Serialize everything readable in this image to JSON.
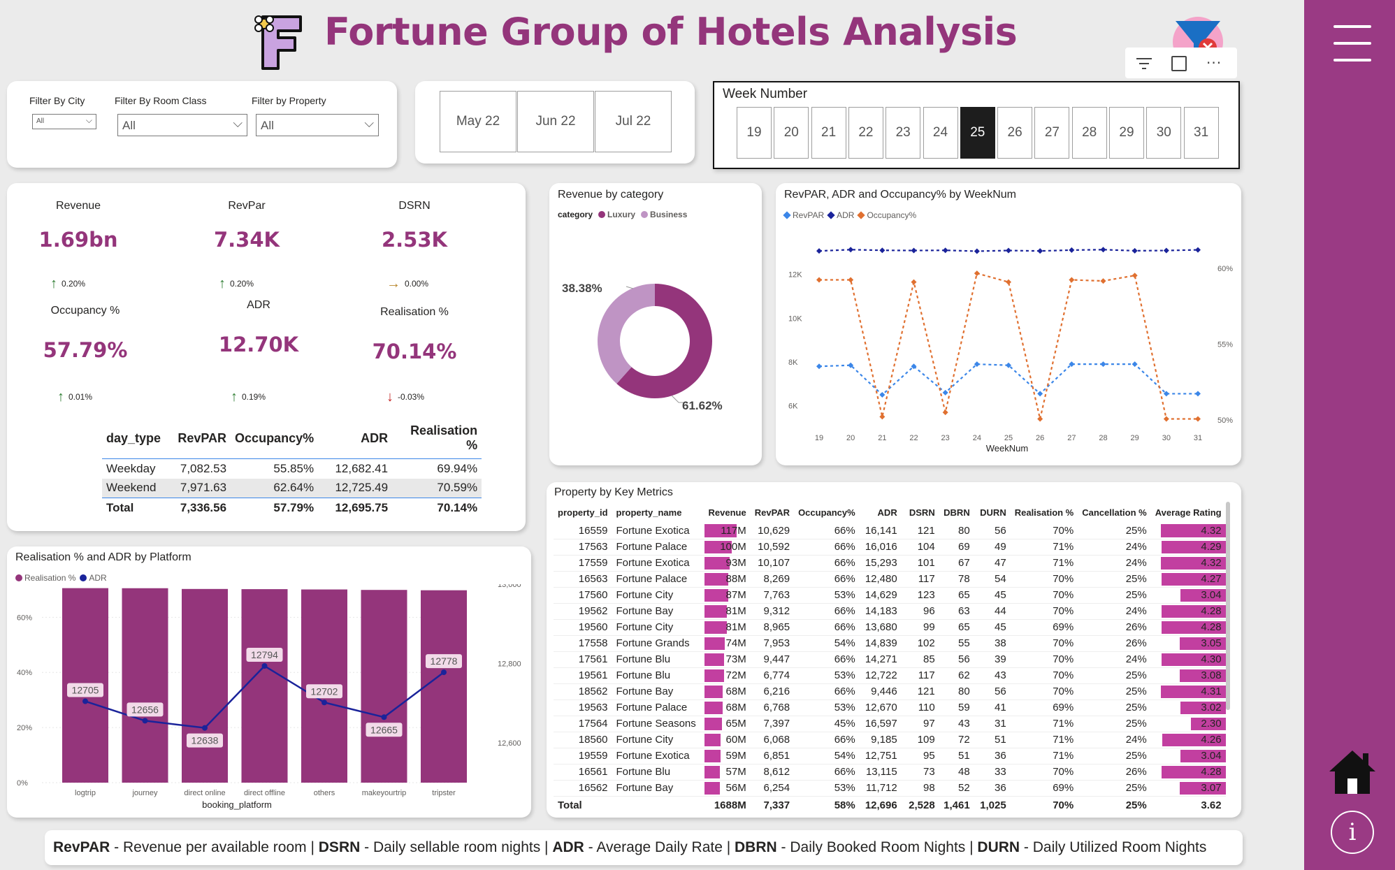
{
  "header": {
    "title": "Fortune Group of Hotels Analysis",
    "logo_letter": "F"
  },
  "filters": {
    "city_label": "Filter By City",
    "city_value": "All",
    "room_class_label": "Filter By Room Class",
    "room_class_value": "All",
    "property_label": "Filter by Property",
    "property_value": "All"
  },
  "months": [
    "May 22",
    "Jun 22",
    "Jul 22"
  ],
  "week_slicer": {
    "title": "Week Number",
    "weeks": [
      "19",
      "20",
      "21",
      "22",
      "23",
      "24",
      "25",
      "26",
      "27",
      "28",
      "29",
      "30",
      "31"
    ],
    "selected": "25"
  },
  "kpis": [
    {
      "label": "Revenue",
      "value": "1.69bn",
      "delta": "0.20%",
      "dir": "up"
    },
    {
      "label": "RevPar",
      "value": "7.34K",
      "delta": "0.20%",
      "dir": "up"
    },
    {
      "label": "DSRN",
      "value": "2.53K",
      "delta": "0.00%",
      "dir": "flat"
    },
    {
      "label": "Occupancy %",
      "value": "57.79%",
      "delta": "0.01%",
      "dir": "up"
    },
    {
      "label": "ADR",
      "value": "12.70K",
      "delta": "0.19%",
      "dir": "up"
    },
    {
      "label": "Realisation %",
      "value": "70.14%",
      "delta": "-0.03%",
      "dir": "down"
    }
  ],
  "day_type_table": {
    "headers": [
      "day_type",
      "RevPAR",
      "Occupancy%",
      "ADR",
      "Realisation %"
    ],
    "rows": [
      [
        "Weekday",
        "7,082.53",
        "55.85%",
        "12,682.41",
        "69.94%"
      ],
      [
        "Weekend",
        "7,971.63",
        "62.64%",
        "12,725.49",
        "70.59%"
      ]
    ],
    "total": [
      "Total",
      "7,336.56",
      "57.79%",
      "12,695.75",
      "70.14%"
    ]
  },
  "revenue_category": {
    "title": "Revenue by category",
    "legend_title": "category",
    "colors": {
      "Luxury": "#94357b",
      "Business": "#bf94c4"
    },
    "chart_data": {
      "type": "pie",
      "categories": [
        "Luxury",
        "Business"
      ],
      "values": [
        61.62,
        38.38
      ],
      "labels": [
        "61.62%",
        "38.38%"
      ]
    }
  },
  "weeknum_chart": {
    "title": "RevPAR, ADR and Occupancy% by WeekNum",
    "xlabel": "WeekNum",
    "left_ticks": [
      "6K",
      "8K",
      "10K",
      "12K"
    ],
    "right_ticks": [
      "50%",
      "55%",
      "60%"
    ],
    "colors": {
      "RevPAR": "#3b86e8",
      "ADR": "#1a239a",
      "Occupancy%": "#e07030"
    },
    "chart_data": {
      "type": "line",
      "x": [
        19,
        20,
        21,
        22,
        23,
        24,
        25,
        26,
        27,
        28,
        29,
        30,
        31
      ],
      "ylim": [
        5000,
        14000
      ],
      "y2lim": [
        49.5,
        62.5
      ],
      "series": [
        {
          "name": "RevPAR",
          "axis": "left",
          "values": [
            7800,
            7850,
            6500,
            7800,
            6600,
            7900,
            7850,
            6550,
            7900,
            7900,
            7900,
            6550,
            6550
          ]
        },
        {
          "name": "ADR",
          "axis": "left",
          "values": [
            13070,
            13130,
            13100,
            13090,
            13100,
            13060,
            13090,
            13070,
            13110,
            13130,
            13080,
            13090,
            13120
          ]
        },
        {
          "name": "Occupancy%",
          "axis": "left",
          "values": [
            11750,
            11750,
            5500,
            11650,
            5700,
            12050,
            11650,
            5400,
            11750,
            11700,
            11950,
            5400,
            5400
          ]
        }
      ]
    }
  },
  "platform_chart": {
    "title": "Realisation % and ADR by Platform",
    "xlabel": "booking_platform",
    "left_ticks": [
      "0%",
      "20%",
      "40%",
      "60%"
    ],
    "right_ticks": [
      "12,600",
      "12,800",
      "13,000"
    ],
    "colors": {
      "Realisation %": "#94357b",
      "ADR": "#1a239a"
    },
    "chart_data": {
      "type": "bar",
      "categories": [
        "logtrip",
        "journey",
        "direct online",
        "direct offline",
        "others",
        "makeyourtrip",
        "tripster"
      ],
      "series": [
        {
          "name": "Realisation %",
          "axis": "left",
          "values": [
            70.57,
            70.54,
            70.27,
            70.2,
            70.09,
            69.92,
            69.8
          ],
          "labels": [
            "70.57%",
            "70.54%",
            "70.27%",
            "70.20%",
            "70.09%",
            "69.92%",
            "69.80%"
          ]
        },
        {
          "name": "ADR",
          "axis": "right",
          "values": [
            12705,
            12656,
            12638,
            12794,
            12702,
            12665,
            12778
          ]
        }
      ],
      "ylim": [
        0,
        72
      ],
      "y2lim": [
        12500,
        13000
      ]
    }
  },
  "property_table": {
    "title": "Property by Key Metrics",
    "headers": [
      "property_id",
      "property_name",
      "Revenue",
      "RevPAR",
      "Occupancy%",
      "ADR",
      "DSRN",
      "DBRN",
      "DURN",
      "Realisation %",
      "Cancellation %",
      "Average Rating"
    ],
    "rows": [
      [
        "16559",
        "Fortune Exotica",
        "117M",
        "10,629",
        "66%",
        "16,141",
        "121",
        "80",
        "56",
        "70%",
        "25%",
        "4.32"
      ],
      [
        "17563",
        "Fortune Palace",
        "100M",
        "10,592",
        "66%",
        "16,016",
        "104",
        "69",
        "49",
        "71%",
        "24%",
        "4.29"
      ],
      [
        "17559",
        "Fortune Exotica",
        "93M",
        "10,107",
        "66%",
        "15,293",
        "101",
        "67",
        "47",
        "71%",
        "24%",
        "4.32"
      ],
      [
        "16563",
        "Fortune Palace",
        "88M",
        "8,269",
        "66%",
        "12,480",
        "117",
        "78",
        "54",
        "70%",
        "25%",
        "4.27"
      ],
      [
        "17560",
        "Fortune City",
        "87M",
        "7,763",
        "53%",
        "14,629",
        "123",
        "65",
        "45",
        "70%",
        "25%",
        "3.04"
      ],
      [
        "19562",
        "Fortune Bay",
        "81M",
        "9,312",
        "66%",
        "14,183",
        "96",
        "63",
        "44",
        "70%",
        "24%",
        "4.28"
      ],
      [
        "19560",
        "Fortune City",
        "81M",
        "8,965",
        "66%",
        "13,680",
        "99",
        "65",
        "45",
        "69%",
        "26%",
        "4.28"
      ],
      [
        "17558",
        "Fortune Grands",
        "74M",
        "7,953",
        "54%",
        "14,839",
        "102",
        "55",
        "38",
        "70%",
        "26%",
        "3.05"
      ],
      [
        "17561",
        "Fortune Blu",
        "73M",
        "9,447",
        "66%",
        "14,271",
        "85",
        "56",
        "39",
        "70%",
        "24%",
        "4.30"
      ],
      [
        "19561",
        "Fortune Blu",
        "72M",
        "6,774",
        "53%",
        "12,722",
        "117",
        "62",
        "43",
        "70%",
        "25%",
        "3.08"
      ],
      [
        "18562",
        "Fortune Bay",
        "68M",
        "6,216",
        "66%",
        "9,446",
        "121",
        "80",
        "56",
        "70%",
        "25%",
        "4.31"
      ],
      [
        "19563",
        "Fortune Palace",
        "68M",
        "6,768",
        "53%",
        "12,670",
        "110",
        "59",
        "41",
        "69%",
        "25%",
        "3.02"
      ],
      [
        "17564",
        "Fortune Seasons",
        "65M",
        "7,397",
        "45%",
        "16,597",
        "97",
        "43",
        "31",
        "71%",
        "25%",
        "2.30"
      ],
      [
        "18560",
        "Fortune City",
        "60M",
        "6,068",
        "66%",
        "9,185",
        "109",
        "72",
        "51",
        "71%",
        "24%",
        "4.26"
      ],
      [
        "19559",
        "Fortune Exotica",
        "59M",
        "6,851",
        "54%",
        "12,751",
        "95",
        "51",
        "36",
        "71%",
        "25%",
        "3.04"
      ],
      [
        "16561",
        "Fortune Blu",
        "57M",
        "8,612",
        "66%",
        "13,115",
        "73",
        "48",
        "33",
        "70%",
        "26%",
        "4.28"
      ],
      [
        "16562",
        "Fortune Bay",
        "56M",
        "6,254",
        "53%",
        "11,712",
        "98",
        "52",
        "36",
        "69%",
        "25%",
        "3.07"
      ]
    ],
    "total": [
      "Total",
      "",
      "1688M",
      "7,337",
      "58%",
      "12,696",
      "2,528",
      "1,461",
      "1,025",
      "70%",
      "25%",
      "3.62"
    ]
  },
  "footer": [
    {
      "term": "RevPAR",
      "def": " - Revenue per available room | "
    },
    {
      "term": "DSRN",
      "def": " - Daily sellable room nights | "
    },
    {
      "term": "ADR",
      "def": " - Average Daily Rate | "
    },
    {
      "term": "DBRN",
      "def": " - Daily Booked Room Nights | "
    },
    {
      "term": "DURN",
      "def": " - Daily Utilized Room Nights"
    }
  ],
  "icons": [
    "logo-icon",
    "clear-filter-icon",
    "filter-icon",
    "focus-mode-icon",
    "more-options-icon",
    "menu-icon",
    "home-icon",
    "info-icon"
  ]
}
